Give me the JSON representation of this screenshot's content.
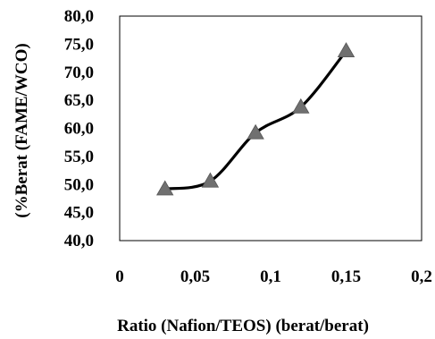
{
  "chart_data": {
    "type": "line",
    "title": "",
    "xlabel": "Ratio (Nafion/TEOS) (berat/berat)",
    "ylabel": "(%Berat (FAME/WCO)",
    "xlim": [
      0,
      0.2
    ],
    "ylim": [
      40,
      80
    ],
    "x_tick_labels": [
      "0",
      "0,05",
      "0,1",
      "0,15",
      "0,2"
    ],
    "x_tick_values": [
      0,
      0.05,
      0.1,
      0.15,
      0.2
    ],
    "y_tick_labels": [
      "40,0",
      "45,0",
      "50,0",
      "55,0",
      "60,0",
      "65,0",
      "70,0",
      "75,0",
      "80,0"
    ],
    "y_tick_values": [
      40,
      45,
      50,
      55,
      60,
      65,
      70,
      75,
      80
    ],
    "grid": false,
    "legend": "none",
    "series": [
      {
        "x": [
          0.03,
          0.06,
          0.09,
          0.12,
          0.15
        ],
        "y": [
          49.2,
          50.6,
          59.2,
          63.8,
          73.8
        ],
        "marker": "triangle",
        "line_color": "#000000",
        "marker_color": "#707070"
      }
    ]
  }
}
